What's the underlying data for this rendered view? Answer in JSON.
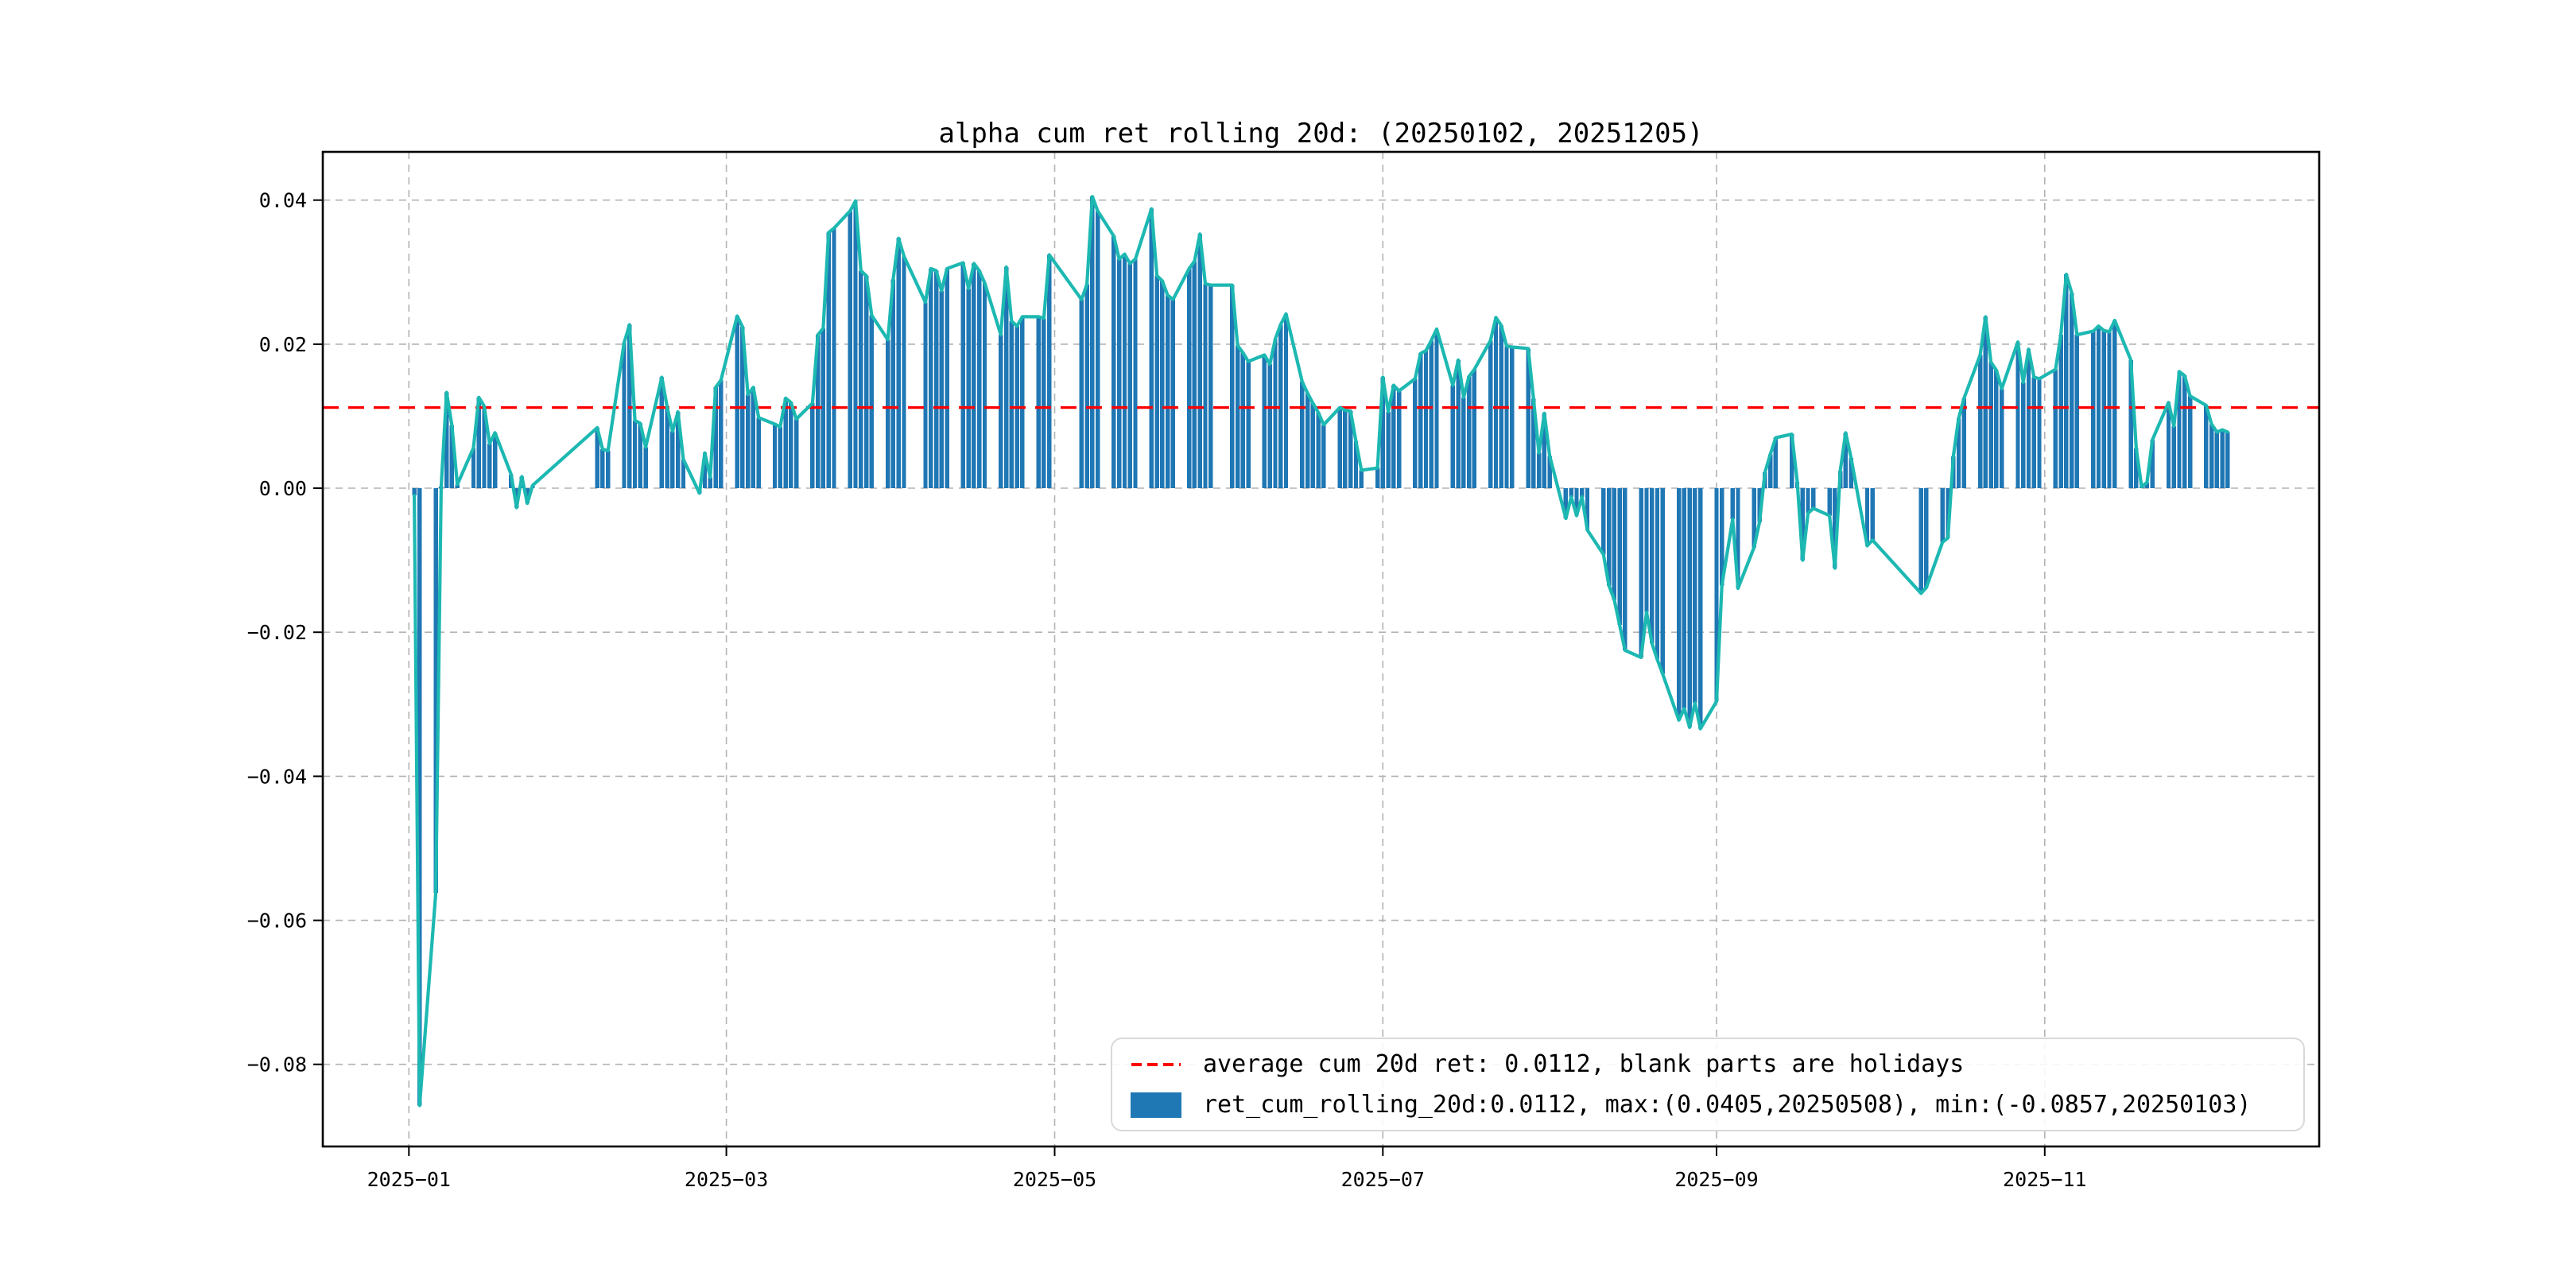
{
  "chart_data": {
    "type": "bar",
    "title": "alpha cum ret rolling 20d: (20250102, 20251205)",
    "series_name": "ret_cum_rolling_20d",
    "legend_position": "lower right",
    "grid": true,
    "bar_color": "#1f77b4",
    "line_color": "#1db8b2",
    "avg_line_color": "#ff0000",
    "background_color": "#ffffff",
    "average": 0.0112,
    "max": {
      "value": 0.0405,
      "date": "20250508"
    },
    "min": {
      "value": -0.0857,
      "date": "20250103"
    },
    "ylim": [
      -0.0914,
      0.0467
    ],
    "x_range": [
      "2024-12-16",
      "2025-12-22"
    ],
    "yticks": [
      {
        "value": 0.04,
        "label": "0.04"
      },
      {
        "value": 0.02,
        "label": "0.02"
      },
      {
        "value": 0.0,
        "label": "0.00"
      },
      {
        "value": -0.02,
        "label": "−0.02"
      },
      {
        "value": -0.04,
        "label": "−0.04"
      },
      {
        "value": -0.06,
        "label": "−0.06"
      },
      {
        "value": -0.08,
        "label": "−0.08"
      }
    ],
    "xticks": [
      {
        "date": "2025-01-01",
        "label": "2025−01"
      },
      {
        "date": "2025-03-01",
        "label": "2025−03"
      },
      {
        "date": "2025-05-01",
        "label": "2025−05"
      },
      {
        "date": "2025-07-01",
        "label": "2025−07"
      },
      {
        "date": "2025-09-01",
        "label": "2025−09"
      },
      {
        "date": "2025-11-01",
        "label": "2025−11"
      }
    ],
    "points": [
      [
        "2025-01-02",
        -0.001
      ],
      [
        "2025-01-03",
        -0.0857
      ],
      [
        "2025-01-06",
        -0.0562
      ],
      [
        "2025-01-07",
        0.0002
      ],
      [
        "2025-01-08",
        0.0133
      ],
      [
        "2025-01-09",
        0.0087
      ],
      [
        "2025-01-10",
        0.0005
      ],
      [
        "2025-01-13",
        0.0056
      ],
      [
        "2025-01-14",
        0.0126
      ],
      [
        "2025-01-15",
        0.0114
      ],
      [
        "2025-01-16",
        0.0062
      ],
      [
        "2025-01-17",
        0.0077
      ],
      [
        "2025-01-20",
        0.0019
      ],
      [
        "2025-01-21",
        -0.0027
      ],
      [
        "2025-01-22",
        0.0016
      ],
      [
        "2025-01-23",
        -0.0021
      ],
      [
        "2025-01-24",
        0.0004
      ],
      [
        "2025-02-05",
        0.0084
      ],
      [
        "2025-02-06",
        0.0054
      ],
      [
        "2025-02-07",
        0.0052
      ],
      [
        "2025-02-10",
        0.0202
      ],
      [
        "2025-02-11",
        0.0227
      ],
      [
        "2025-02-12",
        0.0094
      ],
      [
        "2025-02-13",
        0.009
      ],
      [
        "2025-02-14",
        0.0057
      ],
      [
        "2025-02-17",
        0.0154
      ],
      [
        "2025-02-18",
        0.0112
      ],
      [
        "2025-02-19",
        0.0079
      ],
      [
        "2025-02-20",
        0.0106
      ],
      [
        "2025-02-21",
        0.004
      ],
      [
        "2025-02-24",
        -0.0007
      ],
      [
        "2025-02-25",
        0.0049
      ],
      [
        "2025-02-26",
        0.0015
      ],
      [
        "2025-02-27",
        0.014
      ],
      [
        "2025-02-28",
        0.015
      ],
      [
        "2025-03-03",
        0.0239
      ],
      [
        "2025-03-04",
        0.0224
      ],
      [
        "2025-03-05",
        0.013
      ],
      [
        "2025-03-06",
        0.014
      ],
      [
        "2025-03-07",
        0.0098
      ],
      [
        "2025-03-10",
        0.0089
      ],
      [
        "2025-03-11",
        0.0085
      ],
      [
        "2025-03-12",
        0.0125
      ],
      [
        "2025-03-13",
        0.0119
      ],
      [
        "2025-03-14",
        0.0096
      ],
      [
        "2025-03-17",
        0.0118
      ],
      [
        "2025-03-18",
        0.0213
      ],
      [
        "2025-03-19",
        0.0222
      ],
      [
        "2025-03-20",
        0.0355
      ],
      [
        "2025-03-21",
        0.0361
      ],
      [
        "2025-03-24",
        0.0385
      ],
      [
        "2025-03-25",
        0.0399
      ],
      [
        "2025-03-26",
        0.0302
      ],
      [
        "2025-03-27",
        0.0295
      ],
      [
        "2025-03-28",
        0.024
      ],
      [
        "2025-03-31",
        0.0206
      ],
      [
        "2025-04-01",
        0.029
      ],
      [
        "2025-04-02",
        0.0347
      ],
      [
        "2025-04-03",
        0.0322
      ],
      [
        "2025-04-07",
        0.0258
      ],
      [
        "2025-04-08",
        0.0305
      ],
      [
        "2025-04-09",
        0.0302
      ],
      [
        "2025-04-10",
        0.0274
      ],
      [
        "2025-04-11",
        0.0305
      ],
      [
        "2025-04-14",
        0.0313
      ],
      [
        "2025-04-15",
        0.0277
      ],
      [
        "2025-04-16",
        0.0312
      ],
      [
        "2025-04-17",
        0.0302
      ],
      [
        "2025-04-18",
        0.0285
      ],
      [
        "2025-04-21",
        0.0213
      ],
      [
        "2025-04-22",
        0.0307
      ],
      [
        "2025-04-23",
        0.0232
      ],
      [
        "2025-04-24",
        0.0225
      ],
      [
        "2025-04-25",
        0.0238
      ],
      [
        "2025-04-28",
        0.0238
      ],
      [
        "2025-04-29",
        0.0236
      ],
      [
        "2025-04-30",
        0.0324
      ],
      [
        "2025-05-06",
        0.0262
      ],
      [
        "2025-05-07",
        0.0283
      ],
      [
        "2025-05-08",
        0.0405
      ],
      [
        "2025-05-09",
        0.0385
      ],
      [
        "2025-05-12",
        0.035
      ],
      [
        "2025-05-13",
        0.0318
      ],
      [
        "2025-05-14",
        0.0325
      ],
      [
        "2025-05-15",
        0.0312
      ],
      [
        "2025-05-16",
        0.0318
      ],
      [
        "2025-05-19",
        0.0388
      ],
      [
        "2025-05-20",
        0.0295
      ],
      [
        "2025-05-21",
        0.0288
      ],
      [
        "2025-05-22",
        0.0268
      ],
      [
        "2025-05-23",
        0.0262
      ],
      [
        "2025-05-26",
        0.0305
      ],
      [
        "2025-05-27",
        0.0315
      ],
      [
        "2025-05-28",
        0.0353
      ],
      [
        "2025-05-29",
        0.0284
      ],
      [
        "2025-05-30",
        0.0282
      ],
      [
        "2025-06-03",
        0.0282
      ],
      [
        "2025-06-04",
        0.0198
      ],
      [
        "2025-06-05",
        0.0188
      ],
      [
        "2025-06-06",
        0.0176
      ],
      [
        "2025-06-09",
        0.0185
      ],
      [
        "2025-06-10",
        0.0172
      ],
      [
        "2025-06-11",
        0.0207
      ],
      [
        "2025-06-12",
        0.0227
      ],
      [
        "2025-06-13",
        0.0242
      ],
      [
        "2025-06-16",
        0.0148
      ],
      [
        "2025-06-17",
        0.0132
      ],
      [
        "2025-06-18",
        0.0118
      ],
      [
        "2025-06-19",
        0.0105
      ],
      [
        "2025-06-20",
        0.0088
      ],
      [
        "2025-06-23",
        0.0112
      ],
      [
        "2025-06-24",
        0.0108
      ],
      [
        "2025-06-25",
        0.0107
      ],
      [
        "2025-06-26",
        0.0065
      ],
      [
        "2025-06-27",
        0.0025
      ],
      [
        "2025-06-30",
        0.0028
      ],
      [
        "2025-07-01",
        0.0154
      ],
      [
        "2025-07-02",
        0.0106
      ],
      [
        "2025-07-03",
        0.0143
      ],
      [
        "2025-07-04",
        0.0135
      ],
      [
        "2025-07-07",
        0.0152
      ],
      [
        "2025-07-08",
        0.0187
      ],
      [
        "2025-07-09",
        0.0191
      ],
      [
        "2025-07-10",
        0.0205
      ],
      [
        "2025-07-11",
        0.0221
      ],
      [
        "2025-07-14",
        0.0143
      ],
      [
        "2025-07-15",
        0.0178
      ],
      [
        "2025-07-16",
        0.0126
      ],
      [
        "2025-07-17",
        0.0155
      ],
      [
        "2025-07-18",
        0.0165
      ],
      [
        "2025-07-21",
        0.0205
      ],
      [
        "2025-07-22",
        0.0237
      ],
      [
        "2025-07-23",
        0.0226
      ],
      [
        "2025-07-24",
        0.0197
      ],
      [
        "2025-07-25",
        0.0196
      ],
      [
        "2025-07-28",
        0.0194
      ],
      [
        "2025-07-29",
        0.0124
      ],
      [
        "2025-07-30",
        0.0049
      ],
      [
        "2025-07-31",
        0.0104
      ],
      [
        "2025-08-01",
        0.0045
      ],
      [
        "2025-08-04",
        -0.0042
      ],
      [
        "2025-08-05",
        -0.0012
      ],
      [
        "2025-08-06",
        -0.0038
      ],
      [
        "2025-08-07",
        -0.0012
      ],
      [
        "2025-08-08",
        -0.0058
      ],
      [
        "2025-08-11",
        -0.0092
      ],
      [
        "2025-08-12",
        -0.0135
      ],
      [
        "2025-08-13",
        -0.0155
      ],
      [
        "2025-08-14",
        -0.019
      ],
      [
        "2025-08-15",
        -0.0225
      ],
      [
        "2025-08-18",
        -0.0235
      ],
      [
        "2025-08-19",
        -0.0172
      ],
      [
        "2025-08-20",
        -0.0215
      ],
      [
        "2025-08-21",
        -0.0238
      ],
      [
        "2025-08-22",
        -0.0258
      ],
      [
        "2025-08-25",
        -0.0322
      ],
      [
        "2025-08-26",
        -0.0306
      ],
      [
        "2025-08-27",
        -0.0332
      ],
      [
        "2025-08-28",
        -0.0298
      ],
      [
        "2025-08-29",
        -0.0334
      ],
      [
        "2025-09-01",
        -0.0296
      ],
      [
        "2025-09-02",
        -0.0135
      ],
      [
        "2025-09-04",
        -0.0043
      ],
      [
        "2025-09-05",
        -0.0139
      ],
      [
        "2025-09-08",
        -0.0082
      ],
      [
        "2025-09-09",
        -0.0047
      ],
      [
        "2025-09-10",
        0.0022
      ],
      [
        "2025-09-11",
        0.0047
      ],
      [
        "2025-09-12",
        0.007
      ],
      [
        "2025-09-15",
        0.0075
      ],
      [
        "2025-09-16",
        0.0009
      ],
      [
        "2025-09-17",
        -0.01
      ],
      [
        "2025-09-18",
        -0.0035
      ],
      [
        "2025-09-19",
        -0.0028
      ],
      [
        "2025-09-22",
        -0.0038
      ],
      [
        "2025-09-23",
        -0.0111
      ],
      [
        "2025-09-24",
        0.0024
      ],
      [
        "2025-09-25",
        0.0077
      ],
      [
        "2025-09-26",
        0.0042
      ],
      [
        "2025-09-29",
        -0.008
      ],
      [
        "2025-09-30",
        -0.0072
      ],
      [
        "2025-10-09",
        -0.0146
      ],
      [
        "2025-10-10",
        -0.0138
      ],
      [
        "2025-10-13",
        -0.0075
      ],
      [
        "2025-10-14",
        -0.0069
      ],
      [
        "2025-10-15",
        0.0044
      ],
      [
        "2025-10-16",
        0.0097
      ],
      [
        "2025-10-17",
        0.0125
      ],
      [
        "2025-10-20",
        0.0185
      ],
      [
        "2025-10-21",
        0.0238
      ],
      [
        "2025-10-22",
        0.0175
      ],
      [
        "2025-10-23",
        0.0164
      ],
      [
        "2025-10-24",
        0.0138
      ],
      [
        "2025-10-27",
        0.0203
      ],
      [
        "2025-10-28",
        0.0147
      ],
      [
        "2025-10-29",
        0.0193
      ],
      [
        "2025-10-30",
        0.0154
      ],
      [
        "2025-10-31",
        0.0152
      ],
      [
        "2025-11-03",
        0.0165
      ],
      [
        "2025-11-04",
        0.0213
      ],
      [
        "2025-11-05",
        0.0297
      ],
      [
        "2025-11-06",
        0.0271
      ],
      [
        "2025-11-07",
        0.0213
      ],
      [
        "2025-11-10",
        0.0218
      ],
      [
        "2025-11-11",
        0.0225
      ],
      [
        "2025-11-12",
        0.0219
      ],
      [
        "2025-11-13",
        0.0217
      ],
      [
        "2025-11-14",
        0.0233
      ],
      [
        "2025-11-17",
        0.0178
      ],
      [
        "2025-11-18",
        0.0055
      ],
      [
        "2025-11-19",
        0.0002
      ],
      [
        "2025-11-20",
        0.0008
      ],
      [
        "2025-11-21",
        0.0067
      ],
      [
        "2025-11-24",
        0.0119
      ],
      [
        "2025-11-25",
        0.0086
      ],
      [
        "2025-11-26",
        0.0162
      ],
      [
        "2025-11-27",
        0.0156
      ],
      [
        "2025-11-28",
        0.0128
      ],
      [
        "2025-12-01",
        0.0115
      ],
      [
        "2025-12-02",
        0.0089
      ],
      [
        "2025-12-03",
        0.0078
      ],
      [
        "2025-12-04",
        0.0081
      ],
      [
        "2025-12-05",
        0.0078
      ]
    ]
  },
  "legend": {
    "items": [
      {
        "label": "average cum 20d ret: 0.0112, blank parts are holidays",
        "swatch": "red-dashed-line"
      },
      {
        "label": "ret_cum_rolling_20d:0.0112, max:(0.0405,20250508), min:(-0.0857,20250103)",
        "swatch": "blue-bar-patch"
      }
    ]
  }
}
